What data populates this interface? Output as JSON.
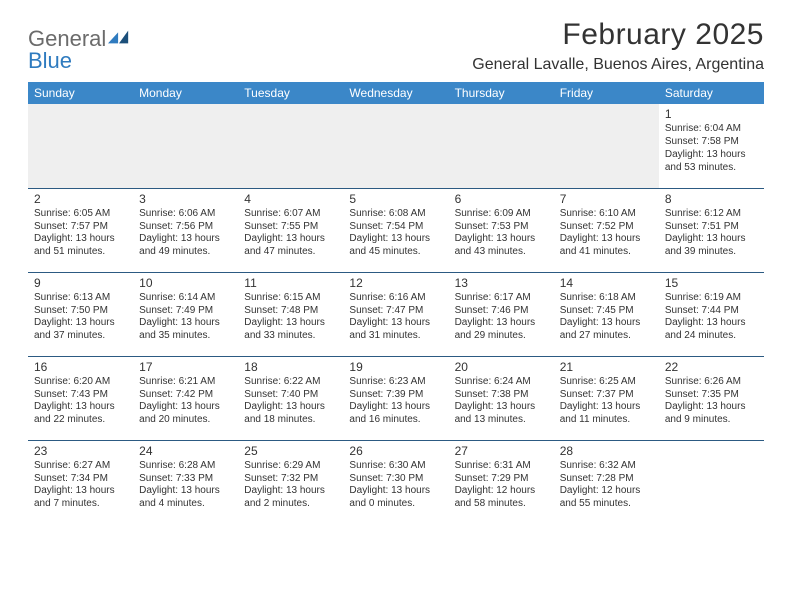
{
  "logo": {
    "text1": "General",
    "text2": "Blue"
  },
  "title": "February 2025",
  "location": "General Lavalle, Buenos Aires, Argentina",
  "colors": {
    "header_bg": "#3b87c8",
    "header_text": "#ffffff",
    "row_divider": "#2c5a82",
    "empty_cell_bg": "#efefef",
    "text": "#333333",
    "logo_gray": "#6b6b6b",
    "logo_blue": "#2f7bbf"
  },
  "day_headers": [
    "Sunday",
    "Monday",
    "Tuesday",
    "Wednesday",
    "Thursday",
    "Friday",
    "Saturday"
  ],
  "weeks": [
    [
      null,
      null,
      null,
      null,
      null,
      null,
      {
        "n": "1",
        "sr": "Sunrise: 6:04 AM",
        "ss": "Sunset: 7:58 PM",
        "d1": "Daylight: 13 hours",
        "d2": "and 53 minutes."
      }
    ],
    [
      {
        "n": "2",
        "sr": "Sunrise: 6:05 AM",
        "ss": "Sunset: 7:57 PM",
        "d1": "Daylight: 13 hours",
        "d2": "and 51 minutes."
      },
      {
        "n": "3",
        "sr": "Sunrise: 6:06 AM",
        "ss": "Sunset: 7:56 PM",
        "d1": "Daylight: 13 hours",
        "d2": "and 49 minutes."
      },
      {
        "n": "4",
        "sr": "Sunrise: 6:07 AM",
        "ss": "Sunset: 7:55 PM",
        "d1": "Daylight: 13 hours",
        "d2": "and 47 minutes."
      },
      {
        "n": "5",
        "sr": "Sunrise: 6:08 AM",
        "ss": "Sunset: 7:54 PM",
        "d1": "Daylight: 13 hours",
        "d2": "and 45 minutes."
      },
      {
        "n": "6",
        "sr": "Sunrise: 6:09 AM",
        "ss": "Sunset: 7:53 PM",
        "d1": "Daylight: 13 hours",
        "d2": "and 43 minutes."
      },
      {
        "n": "7",
        "sr": "Sunrise: 6:10 AM",
        "ss": "Sunset: 7:52 PM",
        "d1": "Daylight: 13 hours",
        "d2": "and 41 minutes."
      },
      {
        "n": "8",
        "sr": "Sunrise: 6:12 AM",
        "ss": "Sunset: 7:51 PM",
        "d1": "Daylight: 13 hours",
        "d2": "and 39 minutes."
      }
    ],
    [
      {
        "n": "9",
        "sr": "Sunrise: 6:13 AM",
        "ss": "Sunset: 7:50 PM",
        "d1": "Daylight: 13 hours",
        "d2": "and 37 minutes."
      },
      {
        "n": "10",
        "sr": "Sunrise: 6:14 AM",
        "ss": "Sunset: 7:49 PM",
        "d1": "Daylight: 13 hours",
        "d2": "and 35 minutes."
      },
      {
        "n": "11",
        "sr": "Sunrise: 6:15 AM",
        "ss": "Sunset: 7:48 PM",
        "d1": "Daylight: 13 hours",
        "d2": "and 33 minutes."
      },
      {
        "n": "12",
        "sr": "Sunrise: 6:16 AM",
        "ss": "Sunset: 7:47 PM",
        "d1": "Daylight: 13 hours",
        "d2": "and 31 minutes."
      },
      {
        "n": "13",
        "sr": "Sunrise: 6:17 AM",
        "ss": "Sunset: 7:46 PM",
        "d1": "Daylight: 13 hours",
        "d2": "and 29 minutes."
      },
      {
        "n": "14",
        "sr": "Sunrise: 6:18 AM",
        "ss": "Sunset: 7:45 PM",
        "d1": "Daylight: 13 hours",
        "d2": "and 27 minutes."
      },
      {
        "n": "15",
        "sr": "Sunrise: 6:19 AM",
        "ss": "Sunset: 7:44 PM",
        "d1": "Daylight: 13 hours",
        "d2": "and 24 minutes."
      }
    ],
    [
      {
        "n": "16",
        "sr": "Sunrise: 6:20 AM",
        "ss": "Sunset: 7:43 PM",
        "d1": "Daylight: 13 hours",
        "d2": "and 22 minutes."
      },
      {
        "n": "17",
        "sr": "Sunrise: 6:21 AM",
        "ss": "Sunset: 7:42 PM",
        "d1": "Daylight: 13 hours",
        "d2": "and 20 minutes."
      },
      {
        "n": "18",
        "sr": "Sunrise: 6:22 AM",
        "ss": "Sunset: 7:40 PM",
        "d1": "Daylight: 13 hours",
        "d2": "and 18 minutes."
      },
      {
        "n": "19",
        "sr": "Sunrise: 6:23 AM",
        "ss": "Sunset: 7:39 PM",
        "d1": "Daylight: 13 hours",
        "d2": "and 16 minutes."
      },
      {
        "n": "20",
        "sr": "Sunrise: 6:24 AM",
        "ss": "Sunset: 7:38 PM",
        "d1": "Daylight: 13 hours",
        "d2": "and 13 minutes."
      },
      {
        "n": "21",
        "sr": "Sunrise: 6:25 AM",
        "ss": "Sunset: 7:37 PM",
        "d1": "Daylight: 13 hours",
        "d2": "and 11 minutes."
      },
      {
        "n": "22",
        "sr": "Sunrise: 6:26 AM",
        "ss": "Sunset: 7:35 PM",
        "d1": "Daylight: 13 hours",
        "d2": "and 9 minutes."
      }
    ],
    [
      {
        "n": "23",
        "sr": "Sunrise: 6:27 AM",
        "ss": "Sunset: 7:34 PM",
        "d1": "Daylight: 13 hours",
        "d2": "and 7 minutes."
      },
      {
        "n": "24",
        "sr": "Sunrise: 6:28 AM",
        "ss": "Sunset: 7:33 PM",
        "d1": "Daylight: 13 hours",
        "d2": "and 4 minutes."
      },
      {
        "n": "25",
        "sr": "Sunrise: 6:29 AM",
        "ss": "Sunset: 7:32 PM",
        "d1": "Daylight: 13 hours",
        "d2": "and 2 minutes."
      },
      {
        "n": "26",
        "sr": "Sunrise: 6:30 AM",
        "ss": "Sunset: 7:30 PM",
        "d1": "Daylight: 13 hours",
        "d2": "and 0 minutes."
      },
      {
        "n": "27",
        "sr": "Sunrise: 6:31 AM",
        "ss": "Sunset: 7:29 PM",
        "d1": "Daylight: 12 hours",
        "d2": "and 58 minutes."
      },
      {
        "n": "28",
        "sr": "Sunrise: 6:32 AM",
        "ss": "Sunset: 7:28 PM",
        "d1": "Daylight: 12 hours",
        "d2": "and 55 minutes."
      },
      null
    ]
  ]
}
